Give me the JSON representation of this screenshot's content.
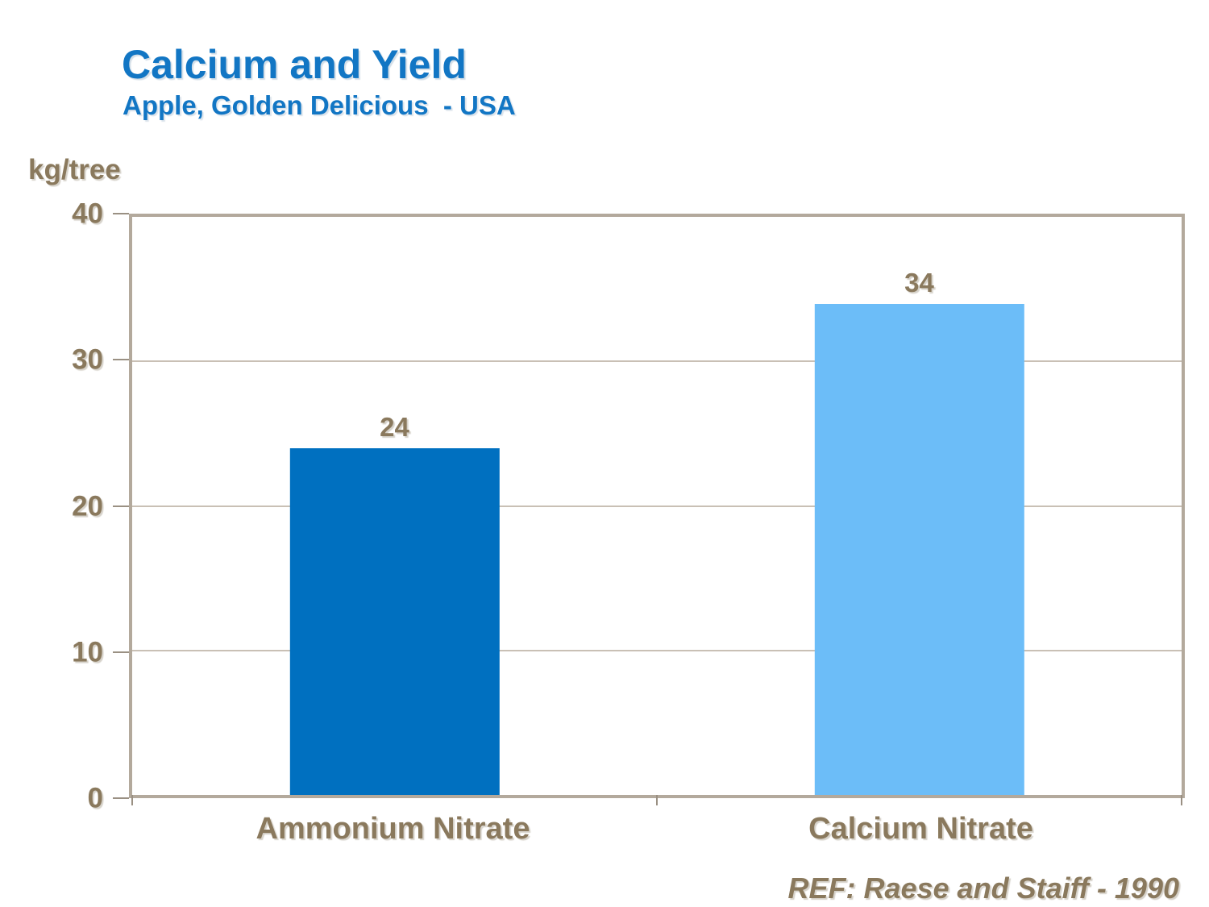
{
  "chart_data": {
    "type": "bar",
    "title": "Calcium and Yield",
    "subtitle": "Apple, Golden Delicious  - USA",
    "ylabel": "kg/tree",
    "xlabel": "",
    "categories": [
      "Ammonium Nitrate",
      "Calcium Nitrate"
    ],
    "values": [
      24,
      34
    ],
    "data_labels": [
      "24",
      "34"
    ],
    "bar_colors": [
      "#0070C0",
      "#6CBDF8"
    ],
    "ylim": [
      0,
      40
    ],
    "yticks": [
      0,
      10,
      20,
      30,
      40
    ],
    "grid": true,
    "legend": false,
    "annotation": "REF: Raese and Staiff - 1990"
  },
  "colors": {
    "title_blue": "#1276C4",
    "bar_dark_blue": "#0070C0",
    "bar_light_blue": "#6CBDF8",
    "text_brown": "#8A795D",
    "axis_frame": "#B3A99C",
    "gridline": "#C9C0B5"
  }
}
